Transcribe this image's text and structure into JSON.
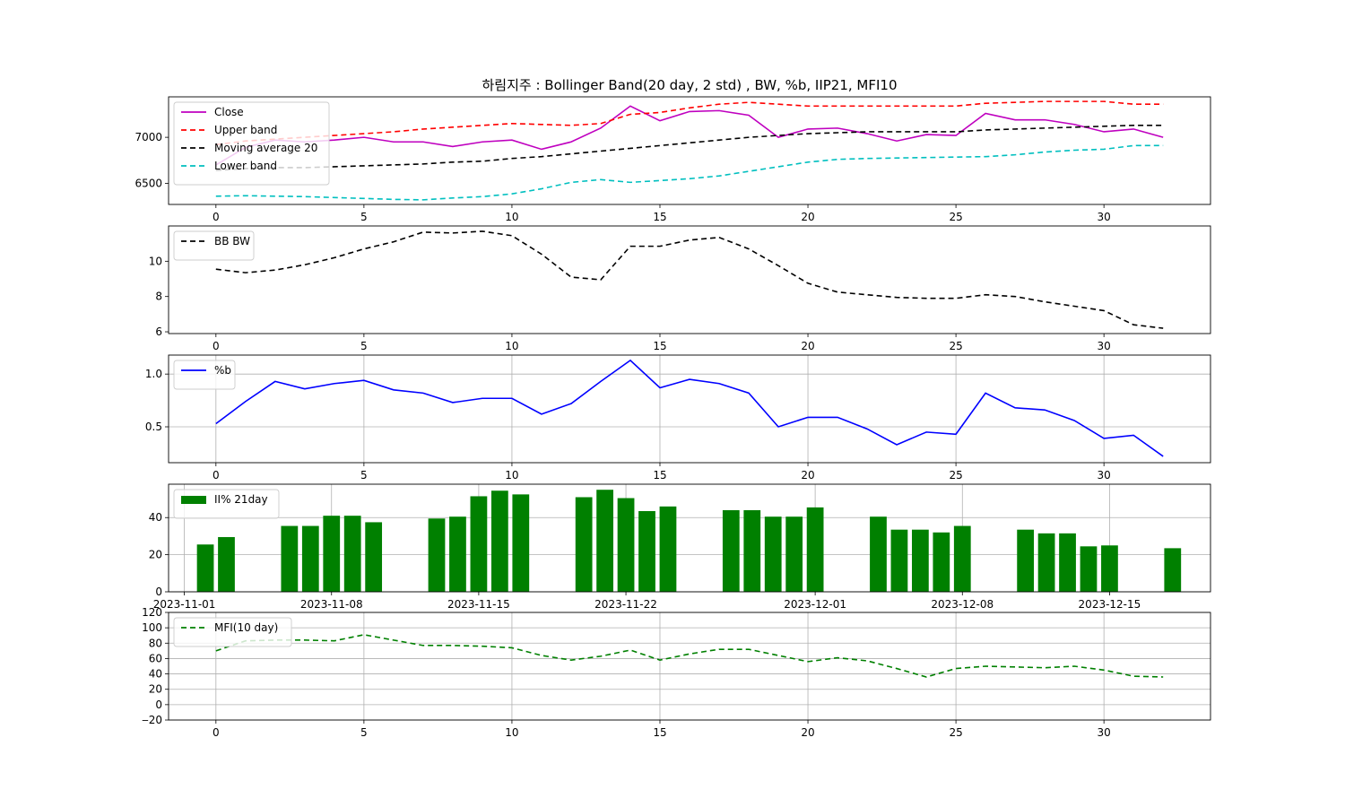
{
  "title": "하림지주 : Bollinger Band(20 day, 2 std) , BW, %b, IIP21, MFI10",
  "chart_data": [
    {
      "type": "line",
      "id": "price",
      "xlim": [
        -1.6,
        33.6
      ],
      "ylim": [
        6270,
        7440
      ],
      "x_ticks": [
        0,
        5,
        10,
        15,
        20,
        25,
        30
      ],
      "y_ticks": [
        6500,
        7000
      ],
      "grid": false,
      "legend": "top-left",
      "series": [
        {
          "name": "Close",
          "color": "#bf00bf",
          "dash": "solid",
          "values": [
            6700,
            6890,
            6970,
            6950,
            6970,
            7000,
            6950,
            6950,
            6900,
            6950,
            6970,
            6870,
            6950,
            7100,
            7340,
            7180,
            7280,
            7290,
            7240,
            7000,
            7090,
            7100,
            7040,
            6960,
            7030,
            7020,
            7260,
            7190,
            7190,
            7140,
            7060,
            7090,
            7000
          ]
        },
        {
          "name": "Upper band",
          "color": "#ff0000",
          "dash": "dashed",
          "values": [
            6920,
            6960,
            6980,
            7000,
            7020,
            7040,
            7060,
            7090,
            7110,
            7130,
            7150,
            7140,
            7130,
            7150,
            7250,
            7270,
            7320,
            7360,
            7380,
            7360,
            7340,
            7340,
            7340,
            7340,
            7340,
            7340,
            7370,
            7380,
            7390,
            7390,
            7390,
            7360,
            7360
          ]
        },
        {
          "name": "Moving average 20",
          "color": "#000000",
          "dash": "dashed",
          "values": [
            6640,
            6660,
            6670,
            6670,
            6680,
            6690,
            6700,
            6710,
            6730,
            6740,
            6770,
            6790,
            6820,
            6850,
            6880,
            6910,
            6940,
            6970,
            7000,
            7020,
            7040,
            7050,
            7060,
            7060,
            7060,
            7060,
            7080,
            7090,
            7100,
            7110,
            7120,
            7130,
            7130
          ]
        },
        {
          "name": "Lower band",
          "color": "#00bfbf",
          "dash": "dashed",
          "values": [
            6360,
            6365,
            6360,
            6355,
            6345,
            6335,
            6325,
            6320,
            6340,
            6355,
            6385,
            6440,
            6510,
            6540,
            6510,
            6530,
            6550,
            6580,
            6630,
            6680,
            6730,
            6760,
            6770,
            6775,
            6780,
            6785,
            6790,
            6810,
            6840,
            6860,
            6870,
            6910,
            6910
          ]
        }
      ]
    },
    {
      "type": "line",
      "id": "bw",
      "xlim": [
        -1.6,
        33.6
      ],
      "ylim": [
        5.9,
        12.0
      ],
      "x_ticks": [
        0,
        5,
        10,
        15,
        20,
        25,
        30
      ],
      "y_ticks": [
        6,
        8,
        10
      ],
      "grid": false,
      "legend": "top-left",
      "series": [
        {
          "name": "BB BW",
          "color": "#000000",
          "dash": "dashed",
          "values": [
            9.55,
            9.35,
            9.5,
            9.8,
            10.2,
            10.7,
            11.1,
            11.65,
            11.6,
            11.7,
            11.45,
            10.4,
            9.1,
            8.95,
            10.85,
            10.85,
            11.2,
            11.35,
            10.7,
            9.75,
            8.75,
            8.25,
            8.1,
            7.95,
            7.9,
            7.9,
            8.1,
            8.0,
            7.7,
            7.45,
            7.2,
            6.4,
            6.2
          ]
        }
      ]
    },
    {
      "type": "line",
      "id": "pctb",
      "xlim": [
        -1.6,
        33.6
      ],
      "ylim": [
        0.16,
        1.18
      ],
      "x_ticks": [
        0,
        5,
        10,
        15,
        20,
        25,
        30
      ],
      "y_ticks": [
        0.5,
        1.0
      ],
      "y_tick_labels": [
        "0.5",
        "1.0"
      ],
      "grid": true,
      "legend": "top-left",
      "series": [
        {
          "name": "%b",
          "color": "#0000ff",
          "dash": "solid",
          "values": [
            0.53,
            0.74,
            0.93,
            0.86,
            0.91,
            0.94,
            0.85,
            0.82,
            0.73,
            0.77,
            0.77,
            0.62,
            0.72,
            0.93,
            1.13,
            0.87,
            0.95,
            0.91,
            0.82,
            0.5,
            0.59,
            0.59,
            0.48,
            0.33,
            0.45,
            0.43,
            0.82,
            0.68,
            0.66,
            0.56,
            0.39,
            0.42,
            0.22
          ]
        }
      ]
    },
    {
      "type": "bar",
      "id": "iip",
      "xlim": [
        -0.75,
        48.8
      ],
      "ylim": [
        0,
        58
      ],
      "y_ticks": [
        0,
        20,
        40
      ],
      "x_tick_positions": [
        0,
        7,
        14,
        21,
        30,
        37,
        44
      ],
      "x_tick_labels": [
        "2023-11-01",
        "2023-11-08",
        "2023-11-15",
        "2023-11-22",
        "2023-12-01",
        "2023-12-08",
        "2023-12-15"
      ],
      "grid": true,
      "legend": "top-left",
      "bar_width": 0.8,
      "series": [
        {
          "name": "II% 21day",
          "color": "#008000",
          "x": [
            1,
            2,
            5,
            6,
            7,
            8,
            9,
            12,
            13,
            14,
            15,
            16,
            19,
            20,
            21,
            22,
            23,
            26,
            27,
            28,
            29,
            30,
            33,
            34,
            35,
            36,
            37,
            40,
            41,
            42,
            43,
            44,
            47
          ],
          "values": [
            25.5,
            29.5,
            35.5,
            35.5,
            41,
            41,
            37.5,
            39.5,
            40.5,
            51.5,
            54.5,
            52.5,
            51,
            55,
            50.5,
            43.5,
            46,
            44,
            44,
            40.5,
            40.5,
            45.5,
            40.5,
            33.5,
            33.5,
            32,
            35.5,
            33.5,
            31.5,
            31.5,
            24.5,
            25,
            23.5
          ]
        }
      ]
    },
    {
      "type": "line",
      "id": "mfi",
      "xlim": [
        -1.6,
        33.6
      ],
      "ylim": [
        -20,
        120
      ],
      "x_ticks": [
        0,
        5,
        10,
        15,
        20,
        25,
        30
      ],
      "y_ticks": [
        -20,
        0,
        20,
        40,
        60,
        80,
        100,
        120
      ],
      "y_tick_labels": [
        "‒20",
        "0",
        "20",
        "40",
        "60",
        "80",
        "100",
        "120"
      ],
      "grid": true,
      "legend": "top-left",
      "series": [
        {
          "name": "MFI(10 day)",
          "color": "#008000",
          "dash": "dashed",
          "values": [
            70,
            83,
            84,
            84,
            83,
            91,
            84,
            77,
            77,
            76,
            74,
            64,
            58,
            63,
            71,
            58,
            66,
            72,
            72,
            64,
            56,
            61,
            57,
            47,
            36,
            47,
            50,
            49,
            48,
            50,
            45,
            37,
            36
          ]
        }
      ]
    }
  ]
}
